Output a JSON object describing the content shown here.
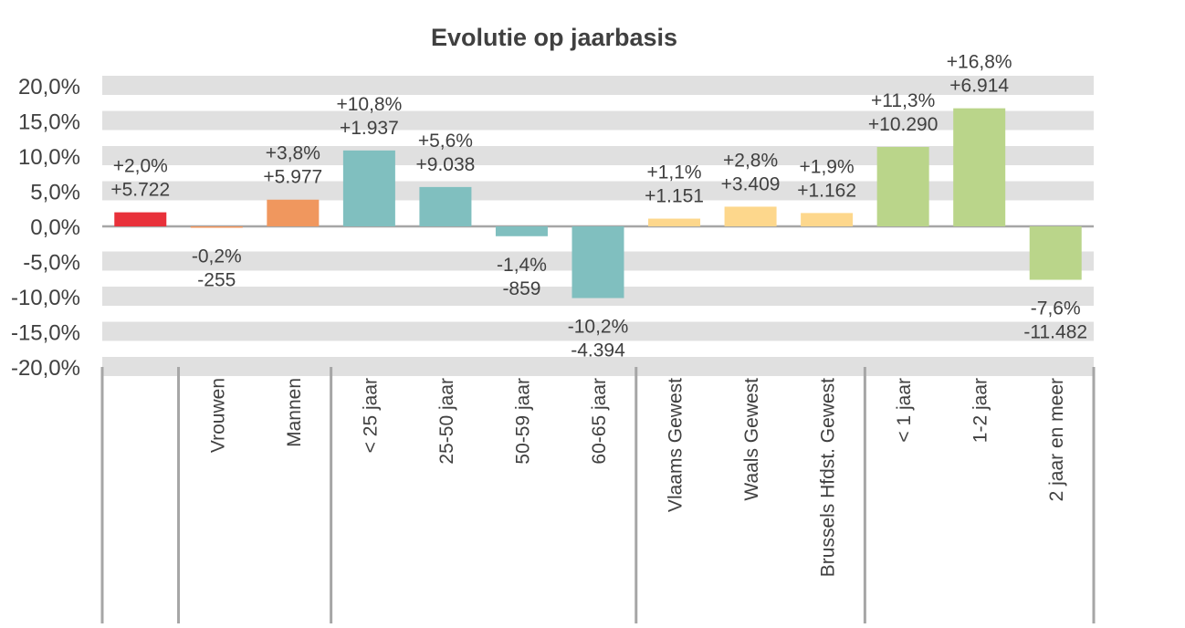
{
  "chart_data": {
    "type": "bar",
    "title": "Evolutie op jaarbasis",
    "categories": [
      "",
      "Vrouwen",
      "Mannen",
      "< 25 jaar",
      "25-50 jaar",
      "50-59 jaar",
      "60-65 jaar",
      "Vlaams Gewest",
      "Waals Gewest",
      "Brussels Hfdst. Gewest",
      "< 1 jaar",
      "1-2 jaar",
      "2 jaar en meer"
    ],
    "values": [
      2.0,
      -0.2,
      3.8,
      10.8,
      5.6,
      -1.4,
      -10.2,
      1.1,
      2.8,
      1.9,
      11.3,
      16.8,
      -7.6
    ],
    "pct_labels": [
      "+2,0%",
      "-0,2%",
      "+3,8%",
      "+10,8%",
      "+5,6%",
      "-1,4%",
      "-10,2%",
      "+1,1%",
      "+2,8%",
      "+1,9%",
      "+11,3%",
      "+16,8%",
      "-7,6%"
    ],
    "count_labels": [
      "+5.722",
      "-255",
      "+5.977",
      "+1.937",
      "+9.038",
      "-859",
      "-4.394",
      "+1.151",
      "+3.409",
      "+1.162",
      "+10.290",
      "+6.914",
      "-11.482"
    ],
    "colors": [
      "#E8313A",
      "#F0975E",
      "#F0975E",
      "#80BFBF",
      "#80BFBF",
      "#80BFBF",
      "#80BFBF",
      "#FDD78C",
      "#FDD78C",
      "#FDD78C",
      "#BAD58A",
      "#BAD58A",
      "#BAD58A"
    ],
    "groups": [
      [
        0
      ],
      [
        1,
        2
      ],
      [
        3,
        4,
        5,
        6
      ],
      [
        7,
        8,
        9
      ],
      [
        10,
        11,
        12
      ]
    ],
    "ylim": [
      -20,
      20
    ],
    "yticks": [
      20,
      15,
      10,
      5,
      0,
      -5,
      -10,
      -15,
      -20
    ],
    "ytick_labels": [
      "20,0%",
      "15,0%",
      "10,0%",
      "5,0%",
      "0,0%",
      "-5,0%",
      "-10,0%",
      "-15,0%",
      "-20,0%"
    ],
    "grid": "banded",
    "legend": "none"
  }
}
